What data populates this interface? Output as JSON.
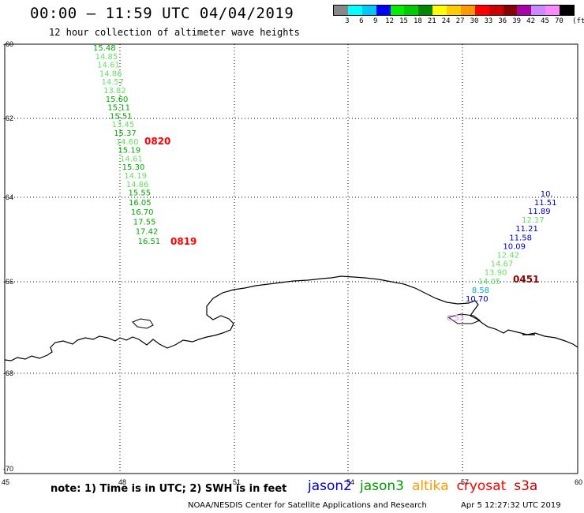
{
  "header": {
    "title": "00:00 – 11:59 UTC 04/04/2019",
    "subtitle": "12 hour collection of altimeter wave heights"
  },
  "legend": {
    "colors": [
      "#888888",
      "#00ffff",
      "#00c8ff",
      "#0000ff",
      "#00ee00",
      "#00cc00",
      "#008800",
      "#ffff00",
      "#ffcc00",
      "#ff9900",
      "#ff0000",
      "#cc0000",
      "#880000",
      "#aa00aa",
      "#cc88ff",
      "#ff88ff",
      "#000000"
    ],
    "labels": [
      "3",
      "6",
      "9",
      "12",
      "15",
      "18",
      "21",
      "24",
      "27",
      "30",
      "33",
      "36",
      "39",
      "42",
      "45",
      "70",
      "(ft)"
    ]
  },
  "axes": {
    "lon": [
      "45",
      "48",
      "51",
      "54",
      "57",
      "60"
    ],
    "lat": [
      "-60",
      "-62",
      "-64",
      "-66",
      "-68",
      "-70"
    ]
  },
  "chart_data": {
    "type": "map",
    "tracks": [
      {
        "pass_label": "0820",
        "values": [
          "15.48",
          "14.85",
          "14.61",
          "14.86",
          "14.57",
          "13.82",
          "15.60",
          "15.11",
          "15.51",
          "13.45",
          "15.37",
          "14.60",
          "15.19",
          "14.61",
          "15.30",
          "14.19",
          "14.86",
          "15.55"
        ],
        "colors": [
          "g",
          "l",
          "l",
          "l",
          "l",
          "l",
          "g",
          "g",
          "g",
          "l",
          "g",
          "l",
          "g",
          "l",
          "g",
          "l",
          "l",
          "g"
        ]
      },
      {
        "pass_label": "0819",
        "values": [
          "16.05",
          "16.70",
          "17.55",
          "17.42",
          "16.51"
        ],
        "colors": [
          "g",
          "g",
          "g",
          "g",
          "g"
        ]
      },
      {
        "pass_label": "0451",
        "values": [
          "10.70",
          "8.58",
          "14.05",
          "13.90",
          "14.67",
          "12.42",
          "10.09",
          "11.58",
          "11.21",
          "12.17",
          "11.89",
          "11.51",
          "10."
        ],
        "colors": [
          "b",
          "c",
          "l",
          "l",
          "l",
          "l",
          "b",
          "b",
          "b",
          "l",
          "b",
          "b",
          "b"
        ]
      }
    ],
    "partial_label": "6.53"
  },
  "note": "note:  1) Time is in UTC;  2) SWH is in feet",
  "satellites": [
    {
      "name": "jason2",
      "color": "#0000cc"
    },
    {
      "name": "jason3",
      "color": "#009900"
    },
    {
      "name": "altika",
      "color": "#ff9900"
    },
    {
      "name": "cryosat",
      "color": "#ff0000"
    },
    {
      "name": "s3a",
      "color": "#cc0000"
    }
  ],
  "credit": "NOAA/NESDIS Center for Satellite Applications and Research",
  "timestamp": "Apr  5 12:27:32 UTC 2019"
}
